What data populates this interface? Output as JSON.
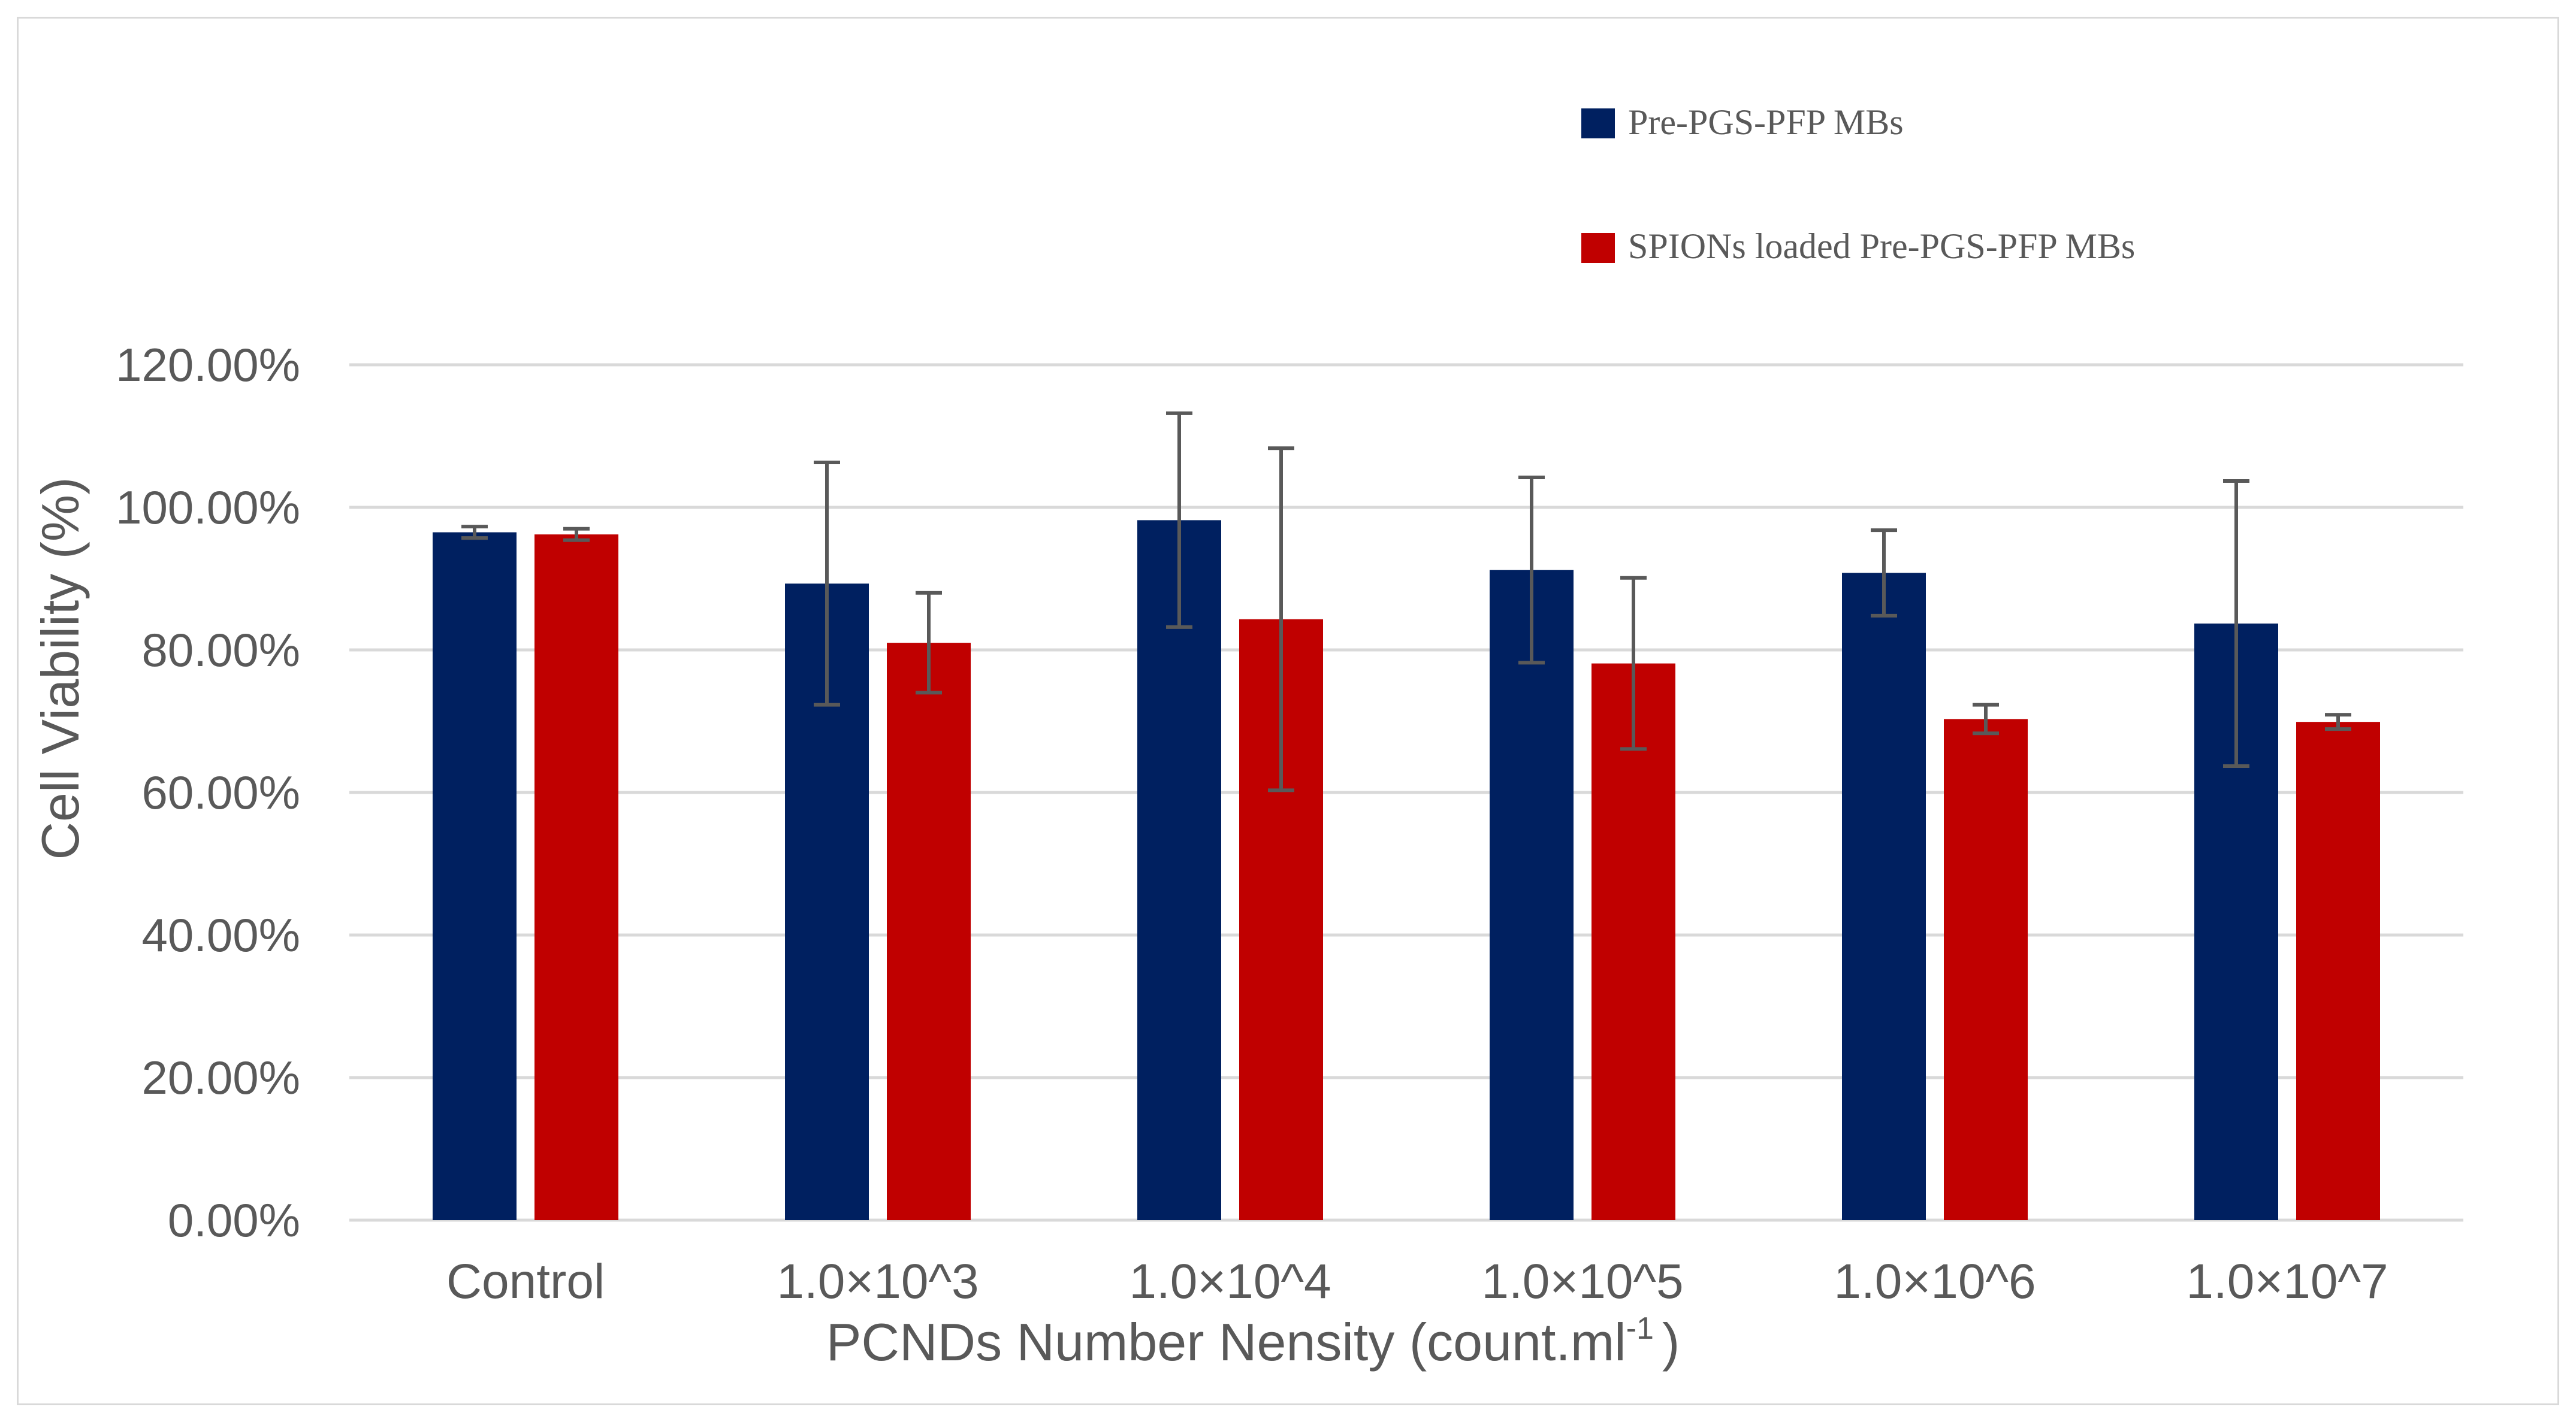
{
  "chart_data": {
    "type": "bar",
    "title": "",
    "xlabel": "PCNDs Number Nensity (count.ml",
    "xlabel_superscript": "-1",
    "xlabel_suffix": ")",
    "ylabel": "Cell Viability (%)",
    "ylim": [
      0,
      1.2
    ],
    "yticks": [
      0,
      0.2,
      0.4,
      0.6,
      0.8,
      1.0,
      1.2
    ],
    "ytick_labels": [
      "0.00%",
      "20.00%",
      "40.00%",
      "60.00%",
      "80.00%",
      "100.00%",
      "120.00%"
    ],
    "grid": true,
    "legend_position": "top-right",
    "categories": [
      "Control",
      "1.0×10^3",
      "1.0×10^4",
      "1.0×10^5",
      "1.0×10^6",
      "1.0×10^7"
    ],
    "series": [
      {
        "name": "Pre-PGS-PFP MBs",
        "color": "#002060",
        "values": [
          0.965,
          0.893,
          0.982,
          0.912,
          0.908,
          0.837
        ],
        "errors": [
          0.008,
          0.17,
          0.15,
          0.13,
          0.06,
          0.2
        ]
      },
      {
        "name": "SPIONs loaded Pre-PGS-PFP MBs",
        "color": "#C00000",
        "values": [
          0.962,
          0.81,
          0.843,
          0.781,
          0.703,
          0.699
        ],
        "errors": [
          0.008,
          0.07,
          0.24,
          0.12,
          0.02,
          0.01
        ]
      }
    ]
  }
}
